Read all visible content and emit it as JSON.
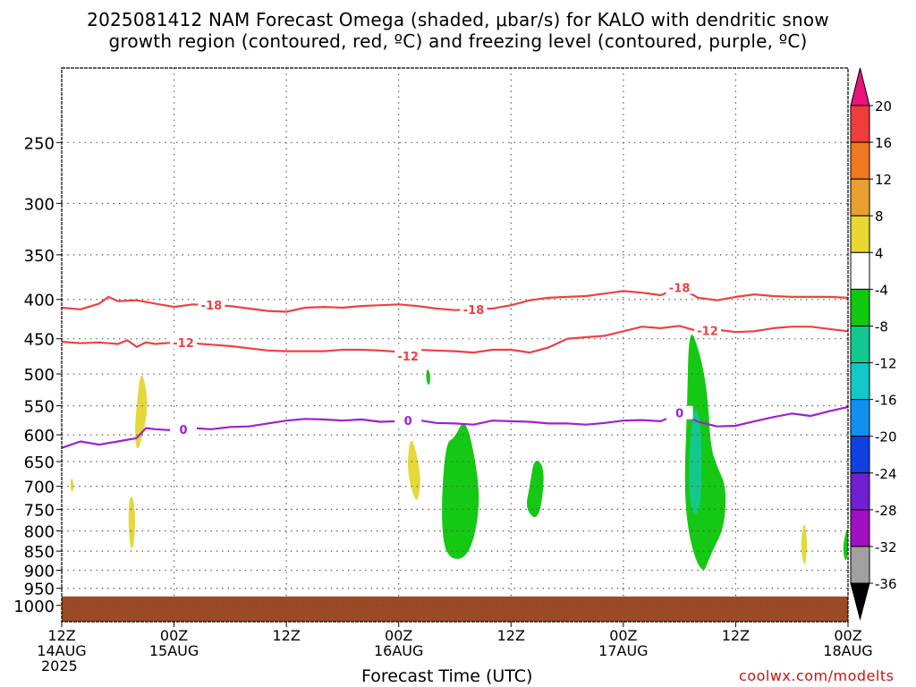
{
  "title_line1": "2025081412 NAM Forecast Omega (shaded, μbar/s) for KALO with dendritic snow",
  "title_line2": "growth region (contoured, red, ºC) and freezing level (contoured, purple, ºC)",
  "credit": "coolwx.com/modelts",
  "chart_data": {
    "type": "time-height cross section",
    "title": "2025081412 NAM Forecast Omega (shaded, μbar/s) for KALO with dendritic snow growth region (contoured, red, ºC) and freezing level (contoured, purple, ºC)",
    "xlabel": "Forecast Time (UTC)",
    "ylabel": "",
    "x_ticks": [
      {
        "hour": 0,
        "lines": [
          "12Z",
          "14AUG",
          "2025"
        ]
      },
      {
        "hour": 12,
        "lines": [
          "00Z",
          "15AUG"
        ]
      },
      {
        "hour": 24,
        "lines": [
          "12Z"
        ]
      },
      {
        "hour": 36,
        "lines": [
          "00Z",
          "16AUG"
        ]
      },
      {
        "hour": 48,
        "lines": [
          "12Z"
        ]
      },
      {
        "hour": 60,
        "lines": [
          "00Z",
          "17AUG"
        ]
      },
      {
        "hour": 72,
        "lines": [
          "12Z"
        ]
      },
      {
        "hour": 84,
        "lines": [
          "00Z",
          "18AUG"
        ]
      }
    ],
    "xlim_hours": [
      0,
      84
    ],
    "y_ticks_hpa": [
      250,
      300,
      350,
      400,
      450,
      500,
      550,
      600,
      650,
      700,
      750,
      800,
      850,
      900,
      950,
      1000
    ],
    "y_scale": "log pressure (inverted)",
    "ylim_hpa": [
      200,
      1050
    ],
    "grid": "dotted",
    "ground_color": "#9a4a24",
    "colorbar": {
      "bounds": [
        "20",
        "16",
        "12",
        "8",
        "4",
        "-4",
        "-8",
        "-12",
        "-16",
        "-20",
        "-24",
        "-28",
        "-32",
        "-36"
      ],
      "colors": [
        "#e8147a",
        "#f03c3c",
        "#f07820",
        "#e8a030",
        "#e8d830",
        "#ffffff",
        "#10c810",
        "#10c890",
        "#10c8c8",
        "#1090f0",
        "#1040e0",
        "#7020d0",
        "#a010c0",
        "#a0a0a0",
        "#000000"
      ]
    },
    "contours": [
      {
        "name": "-18",
        "label": "-18",
        "color": "#f04040",
        "points": [
          [
            0,
            410
          ],
          [
            2,
            412
          ],
          [
            4,
            405
          ],
          [
            5,
            397
          ],
          [
            6,
            402
          ],
          [
            8,
            401
          ],
          [
            10,
            405
          ],
          [
            12,
            409
          ],
          [
            14,
            406
          ],
          [
            16,
            407
          ],
          [
            18,
            408
          ],
          [
            20,
            411
          ],
          [
            22,
            414
          ],
          [
            24,
            415
          ],
          [
            26,
            410
          ],
          [
            28,
            409
          ],
          [
            30,
            410
          ],
          [
            32,
            408
          ],
          [
            34,
            407
          ],
          [
            36,
            406
          ],
          [
            38,
            408
          ],
          [
            40,
            411
          ],
          [
            42,
            413
          ],
          [
            44,
            412
          ],
          [
            46,
            411
          ],
          [
            48,
            407
          ],
          [
            50,
            401
          ],
          [
            52,
            398
          ],
          [
            54,
            397
          ],
          [
            56,
            396
          ],
          [
            58,
            393
          ],
          [
            60,
            390
          ],
          [
            62,
            392
          ],
          [
            64,
            395
          ],
          [
            66,
            386
          ],
          [
            68,
            398
          ],
          [
            70,
            401
          ],
          [
            72,
            397
          ],
          [
            74,
            394
          ],
          [
            76,
            396
          ],
          [
            78,
            397
          ],
          [
            80,
            397
          ],
          [
            82,
            397
          ],
          [
            84,
            398
          ]
        ],
        "labels_at_hours": [
          16,
          44,
          66
        ]
      },
      {
        "name": "-12",
        "label": "-12",
        "color": "#f04040",
        "points": [
          [
            0,
            454
          ],
          [
            2,
            456
          ],
          [
            4,
            455
          ],
          [
            6,
            457
          ],
          [
            7,
            452
          ],
          [
            8,
            461
          ],
          [
            9,
            455
          ],
          [
            10,
            457
          ],
          [
            12,
            455
          ],
          [
            14,
            456
          ],
          [
            16,
            458
          ],
          [
            18,
            460
          ],
          [
            20,
            463
          ],
          [
            22,
            466
          ],
          [
            24,
            467
          ],
          [
            26,
            467
          ],
          [
            28,
            467
          ],
          [
            30,
            465
          ],
          [
            32,
            465
          ],
          [
            34,
            466
          ],
          [
            36,
            468
          ],
          [
            37,
            474
          ],
          [
            38,
            465
          ],
          [
            40,
            466
          ],
          [
            42,
            467
          ],
          [
            44,
            469
          ],
          [
            46,
            465
          ],
          [
            48,
            465
          ],
          [
            50,
            469
          ],
          [
            52,
            462
          ],
          [
            54,
            450
          ],
          [
            56,
            448
          ],
          [
            58,
            446
          ],
          [
            60,
            440
          ],
          [
            62,
            434
          ],
          [
            64,
            436
          ],
          [
            66,
            433
          ],
          [
            68,
            440
          ],
          [
            70,
            438
          ],
          [
            72,
            441
          ],
          [
            74,
            440
          ],
          [
            76,
            436
          ],
          [
            78,
            434
          ],
          [
            80,
            434
          ],
          [
            82,
            437
          ],
          [
            84,
            440
          ]
        ],
        "labels_at_hours": [
          13,
          37,
          69
        ]
      },
      {
        "name": "0",
        "label": "0",
        "color": "#a020d0",
        "points": [
          [
            0,
            624
          ],
          [
            2,
            612
          ],
          [
            4,
            618
          ],
          [
            6,
            612
          ],
          [
            8,
            606
          ],
          [
            9,
            588
          ],
          [
            10,
            590
          ],
          [
            12,
            592
          ],
          [
            14,
            588
          ],
          [
            16,
            590
          ],
          [
            18,
            586
          ],
          [
            20,
            585
          ],
          [
            22,
            580
          ],
          [
            24,
            575
          ],
          [
            26,
            572
          ],
          [
            28,
            573
          ],
          [
            30,
            575
          ],
          [
            32,
            573
          ],
          [
            34,
            577
          ],
          [
            36,
            576
          ],
          [
            38,
            574
          ],
          [
            40,
            579
          ],
          [
            42,
            580
          ],
          [
            44,
            582
          ],
          [
            46,
            575
          ],
          [
            48,
            576
          ],
          [
            50,
            577
          ],
          [
            52,
            580
          ],
          [
            54,
            580
          ],
          [
            56,
            582
          ],
          [
            58,
            579
          ],
          [
            60,
            575
          ],
          [
            62,
            574
          ],
          [
            64,
            576
          ],
          [
            66,
            562
          ],
          [
            68,
            577
          ],
          [
            70,
            585
          ],
          [
            72,
            584
          ],
          [
            74,
            576
          ],
          [
            76,
            569
          ],
          [
            78,
            563
          ],
          [
            80,
            567
          ],
          [
            82,
            559
          ],
          [
            84,
            552
          ]
        ],
        "labels_at_hours": [
          13,
          37,
          66
        ]
      }
    ],
    "shaded_regions": [
      {
        "range": "4 to 8",
        "points": [
          [
            1.0,
            680
          ],
          [
            1.3,
            692
          ],
          [
            1.2,
            715
          ],
          [
            0.9,
            704
          ]
        ]
      },
      {
        "range": "4 to 8",
        "points": [
          [
            8.0,
            550
          ],
          [
            8.5,
            488
          ],
          [
            9.3,
            545
          ],
          [
            8.7,
            600
          ],
          [
            8.0,
            635
          ],
          [
            7.8,
            590
          ]
        ]
      },
      {
        "range": "4 to 8",
        "points": [
          [
            7.2,
            720
          ],
          [
            7.7,
            725
          ],
          [
            7.9,
            790
          ],
          [
            7.5,
            860
          ],
          [
            7.1,
            800
          ]
        ]
      },
      {
        "range": "-4 to -8",
        "points": [
          [
            39.0,
            490
          ],
          [
            39.4,
            500
          ],
          [
            39.3,
            520
          ],
          [
            38.9,
            510
          ]
        ]
      },
      {
        "range": "4 to 8",
        "points": [
          [
            37.3,
            600
          ],
          [
            38.0,
            640
          ],
          [
            38.4,
            690
          ],
          [
            38.0,
            740
          ],
          [
            37.2,
            700
          ],
          [
            36.9,
            650
          ]
        ]
      },
      {
        "range": "-4 to -8",
        "points": [
          [
            41.0,
            615
          ],
          [
            42.0,
            605
          ],
          [
            43.0,
            570
          ],
          [
            44.0,
            625
          ],
          [
            44.8,
            740
          ],
          [
            43.5,
            870
          ],
          [
            41.0,
            870
          ],
          [
            40.5,
            760
          ]
        ]
      },
      {
        "range": "-4 to -8",
        "points": [
          [
            50.5,
            640
          ],
          [
            51.7,
            665
          ],
          [
            51.0,
            780
          ],
          [
            49.5,
            750
          ],
          [
            50.0,
            700
          ]
        ]
      },
      {
        "range": "-4 to -8",
        "points": [
          [
            67.0,
            430
          ],
          [
            68.2,
            470
          ],
          [
            69.0,
            530
          ],
          [
            69.3,
            620
          ],
          [
            70.0,
            660
          ],
          [
            71.0,
            700
          ],
          [
            70.8,
            790
          ],
          [
            69.5,
            850
          ],
          [
            69.0,
            880
          ],
          [
            68.6,
            905
          ],
          [
            67.8,
            880
          ],
          [
            66.9,
            800
          ],
          [
            66.5,
            700
          ],
          [
            66.8,
            560
          ]
        ]
      },
      {
        "range": "-8 to -12",
        "points": [
          [
            67.6,
            540
          ],
          [
            68.4,
            590
          ],
          [
            68.3,
            760
          ],
          [
            67.2,
            760
          ],
          [
            66.9,
            650
          ]
        ]
      },
      {
        "range": "4 to 8",
        "points": [
          [
            79.3,
            770
          ],
          [
            79.7,
            830
          ],
          [
            79.4,
            900
          ],
          [
            78.9,
            840
          ]
        ]
      },
      {
        "range": "-4 to -8",
        "points": [
          [
            84.0,
            780
          ],
          [
            84.0,
            860
          ],
          [
            83.7,
            880
          ],
          [
            83.4,
            840
          ]
        ]
      }
    ]
  }
}
